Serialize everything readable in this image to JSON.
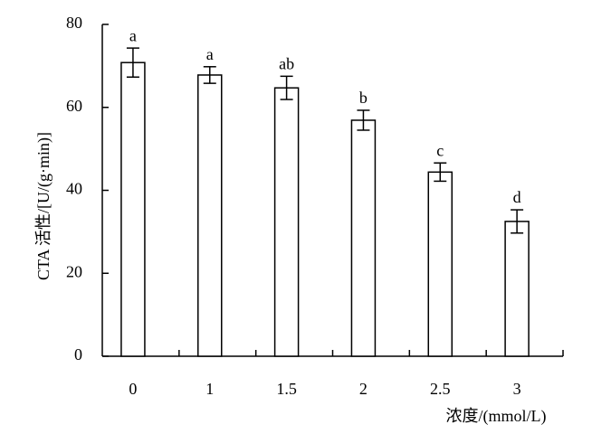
{
  "chart_data": {
    "type": "bar",
    "categories": [
      "0",
      "1",
      "1.5",
      "2",
      "2.5",
      "3"
    ],
    "values": [
      70.8,
      67.8,
      64.7,
      56.9,
      44.4,
      32.5
    ],
    "errors": [
      3.5,
      2,
      2.8,
      2.4,
      2.2,
      2.8
    ],
    "significance": [
      "a",
      "a",
      "ab",
      "b",
      "c",
      "d"
    ],
    "color": "#ffffff",
    "ylabel": "CTA 活性/[U/(g·min)]",
    "xlabel": "浓度/(mmol/L)",
    "ylim": [
      0,
      80
    ],
    "yticks": [
      0,
      20,
      40,
      60,
      80
    ],
    "grid": false
  }
}
